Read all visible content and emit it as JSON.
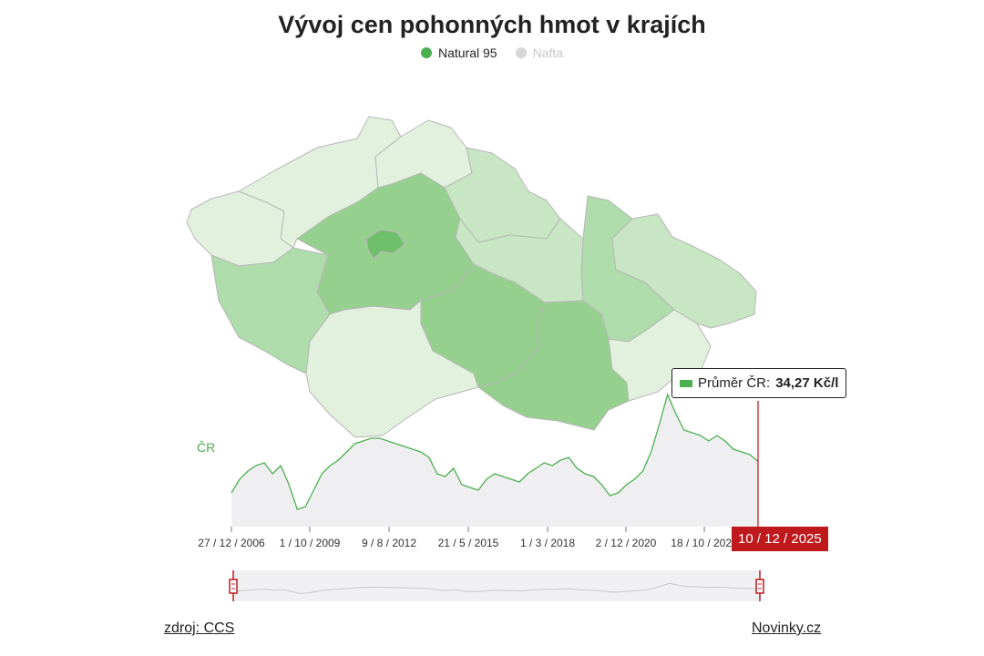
{
  "title": "Vývoj cen pohonných hmot v krajích",
  "legend": [
    {
      "label": "Natural 95",
      "color": "#4caf50",
      "active": true
    },
    {
      "label": "Nafta",
      "color": "#d6d6d6",
      "active": false
    }
  ],
  "line_label": "ČR",
  "tooltip": {
    "label": "Průměr ČR:",
    "value": "34,27 Kč/l"
  },
  "selected_date": "10 / 12 / 2025",
  "footer": {
    "source": "zdroj: CCS",
    "brand": "Novinky.cz"
  },
  "colors": {
    "accent": "#4caf50",
    "highlight": "#c0191d",
    "area": "#efeff1"
  },
  "chart_data": {
    "type": "line",
    "x_ticks": [
      "27 / 12 / 2006",
      "1 / 10 / 2009",
      "9 / 8 / 2012",
      "21 / 5 / 2015",
      "1 / 3 / 2018",
      "2 / 12 / 2020",
      "18 / 10 / 2023"
    ],
    "series": [
      {
        "name": "ČR",
        "values": [
          28.5,
          31.0,
          32.5,
          33.5,
          34.0,
          32.0,
          33.5,
          30.0,
          25.5,
          26.0,
          29.0,
          32.0,
          33.5,
          34.5,
          36.0,
          37.5,
          38.0,
          38.5,
          38.5,
          38.0,
          37.5,
          37.0,
          36.5,
          36.0,
          35.0,
          32.0,
          31.5,
          33.0,
          30.0,
          29.5,
          29.0,
          31.0,
          32.0,
          31.5,
          31.0,
          30.5,
          32.0,
          33.0,
          34.0,
          33.5,
          34.5,
          35.0,
          33.0,
          32.0,
          31.5,
          30.0,
          28.0,
          28.5,
          30.0,
          31.0,
          32.5,
          36.0,
          41.0,
          46.5,
          43.0,
          40.0,
          39.5,
          39.0,
          38.0,
          39.0,
          38.0,
          36.5,
          36.0,
          35.5,
          34.3
        ]
      }
    ],
    "selected_value": 34.27,
    "map_regions": [
      {
        "name": "Praha",
        "level": 5
      },
      {
        "name": "Středočeský",
        "level": 4
      },
      {
        "name": "Jihočeský",
        "level": 1
      },
      {
        "name": "Plzeňský",
        "level": 3
      },
      {
        "name": "Karlovarský",
        "level": 1
      },
      {
        "name": "Ústecký",
        "level": 1
      },
      {
        "name": "Liberecký",
        "level": 1
      },
      {
        "name": "Královéhradecký",
        "level": 2
      },
      {
        "name": "Pardubický",
        "level": 2
      },
      {
        "name": "Vysočina",
        "level": 4
      },
      {
        "name": "Jihomoravský",
        "level": 4
      },
      {
        "name": "Olomoucký",
        "level": 3
      },
      {
        "name": "Zlínský",
        "level": 1
      },
      {
        "name": "Moravskoslezský",
        "level": 2
      }
    ]
  }
}
